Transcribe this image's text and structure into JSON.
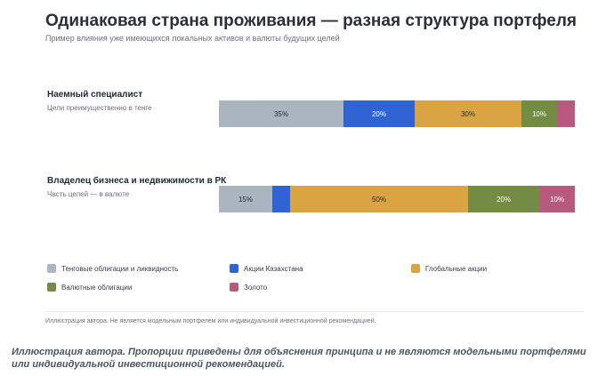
{
  "chart_data": {
    "type": "bar",
    "orientation": "horizontal",
    "stacked": true,
    "title": "Одинаковая страна проживания — разная структура портфеля",
    "subtitle": "Пример влияния уже имеющихся локальных активов и валюты будущих целей",
    "categories": [
      {
        "name": "Наемный специалист",
        "note": "Цели преимущественно в тенге"
      },
      {
        "name": "Владелец бизнеса и недвижимости в РК",
        "note": "Часть целей — в валюте"
      }
    ],
    "series": [
      {
        "name": "Тенговые облигации и ликвидность",
        "color": "#abb5bf",
        "values": [
          35,
          15
        ],
        "labels": [
          "35%",
          "15%"
        ]
      },
      {
        "name": "Акции Казахстана",
        "color": "#3063d4",
        "values": [
          20,
          5
        ],
        "labels": [
          "20%",
          ""
        ]
      },
      {
        "name": "Глобальные акции",
        "color": "#d9a441",
        "values": [
          30,
          50
        ],
        "labels": [
          "30%",
          "50%"
        ]
      },
      {
        "name": "Валютные облигации",
        "color": "#738b42",
        "values": [
          10,
          20
        ],
        "labels": [
          "10%",
          "20%"
        ]
      },
      {
        "name": "Золото",
        "color": "#b85a7d",
        "values": [
          5,
          10
        ],
        "labels": [
          "",
          "10%"
        ]
      }
    ],
    "xlim": [
      0,
      100
    ],
    "grid": false,
    "legend_position": "bottom"
  },
  "footnote": "Иллюстрация автора. Не является модельным портфелем или индивидуальной инвестиционной рекомендацией.",
  "caption": "Иллюстрация автора. Пропорции приведены для объяснения принципа и не являются модельными портфелями или индивидуальной инвестиционной рекомендацией."
}
